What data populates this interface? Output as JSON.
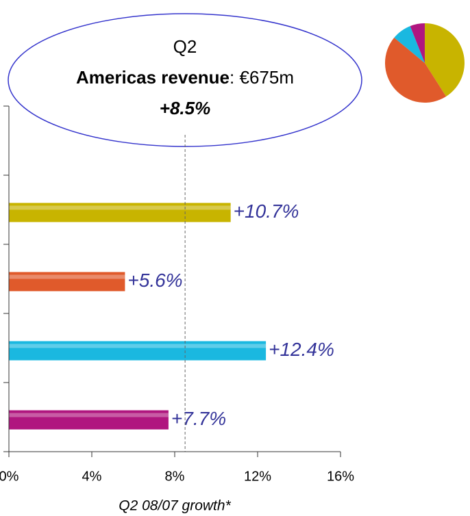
{
  "chart_data": [
    {
      "type": "barh",
      "categories": [
        null,
        null,
        null,
        null
      ],
      "values": [
        10.7,
        5.6,
        12.4,
        7.7
      ],
      "value_labels": [
        "+10.7%",
        "+5.6%",
        "+12.4%",
        "+7.7%"
      ],
      "colors": [
        "#c8b400",
        "#e05a2b",
        "#1ab8e0",
        "#b0167f"
      ],
      "xlim": [
        0,
        16
      ],
      "xticks": [
        {
          "value": 0,
          "label": "0%"
        },
        {
          "value": 4,
          "label": "4%"
        },
        {
          "value": 8,
          "label": "8%"
        },
        {
          "value": 12,
          "label": "12%"
        },
        {
          "value": 16,
          "label": "16%"
        }
      ],
      "x_label": "Q2 08/07 growth*",
      "annotation": {
        "period": "Q2",
        "region": "Americas revenue",
        "revenue_text": ": €675m",
        "growth_label": "+8.5%",
        "growth": 8.5
      }
    },
    {
      "type": "pie",
      "values": [
        41,
        45,
        8,
        6
      ],
      "colors": [
        "#c8b400",
        "#e05a2b",
        "#1ab8e0",
        "#b0167f"
      ]
    }
  ]
}
